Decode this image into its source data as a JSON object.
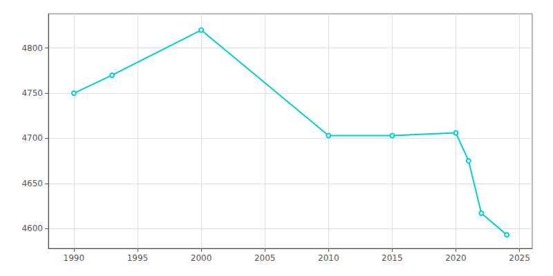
{
  "chart_data": {
    "type": "line",
    "x": [
      1990,
      1993,
      2000,
      2010,
      2015,
      2020,
      2021,
      2022,
      2024
    ],
    "values": [
      4750,
      4770,
      4820,
      4703,
      4703,
      4706,
      4675,
      4617,
      4593
    ],
    "color": "#00CED1",
    "xlim": [
      1988,
      2026
    ],
    "xticks": [
      1990,
      1995,
      2000,
      2005,
      2010,
      2015,
      2020,
      2025
    ],
    "ylim": [
      4578,
      4838
    ],
    "yticks": [
      4600,
      4650,
      4700,
      4750,
      4800
    ],
    "grid": true
  }
}
